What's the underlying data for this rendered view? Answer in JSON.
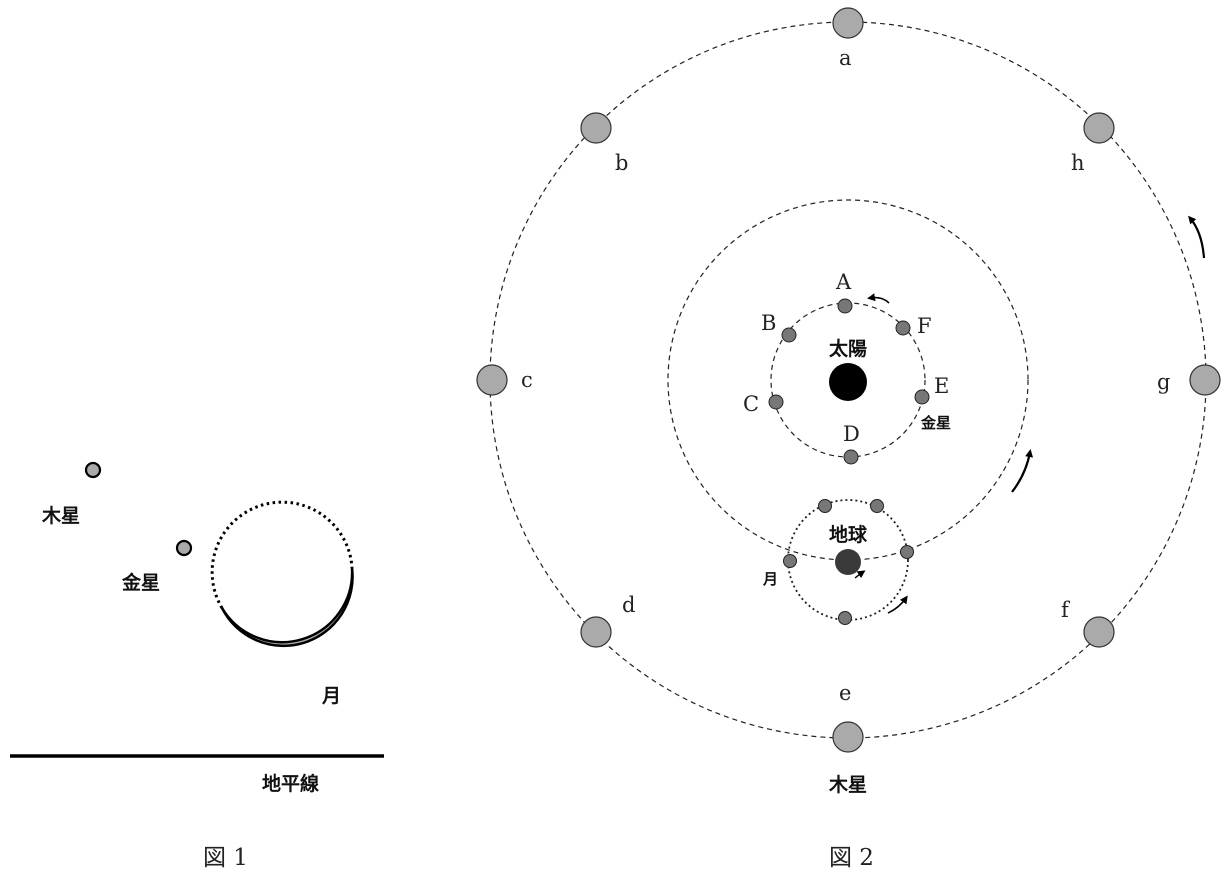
{
  "figure1": {
    "caption": "図 1",
    "labels": {
      "jupiter": "木星",
      "venus": "金星",
      "moon": "月",
      "horizon": "地平線"
    },
    "colors": {
      "planet_fill": "#aaaaaa",
      "moon_lit_fill": "#aaaaaa",
      "line": "#000000"
    }
  },
  "figure2": {
    "caption": "図 2",
    "labels": {
      "sun": "太陽",
      "earth": "地球",
      "moon": "月",
      "venus": "金星",
      "jupiter": "木星"
    },
    "jupiter_positions": [
      "a",
      "b",
      "c",
      "d",
      "e",
      "f",
      "g",
      "h"
    ],
    "venus_positions": [
      "A",
      "B",
      "C",
      "D",
      "E",
      "F"
    ],
    "colors": {
      "sun": "#000000",
      "earth": "#3a3a3a",
      "jupiter_fill": "#aaaaaa",
      "small_body_fill": "#777777",
      "orbit_stroke": "#222222"
    }
  }
}
